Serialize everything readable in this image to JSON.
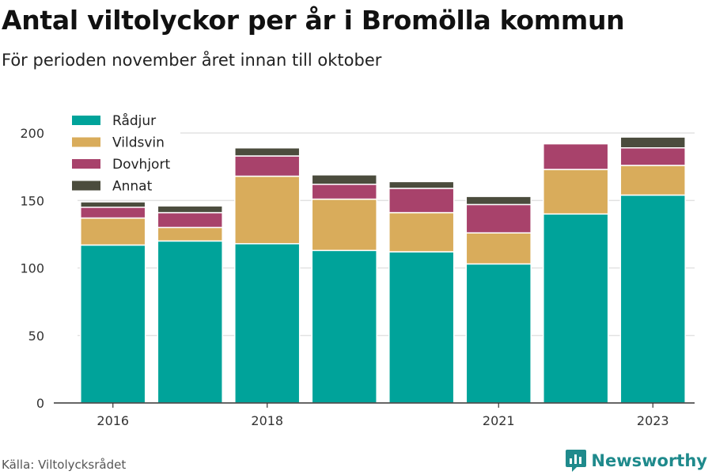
{
  "header": {
    "title": "Antal viltolyckor per år i Bromölla kommun",
    "subtitle": "För perioden november året innan till oktober"
  },
  "footer": {
    "source": "Källa: Viltolycksrådet",
    "brand": "Newsworthy",
    "brand_icon": "newsworthy-logo-icon"
  },
  "chart_data": {
    "type": "bar",
    "stacked": true,
    "categories": [
      "2016",
      "2017",
      "2018",
      "2019",
      "2020",
      "2021",
      "2022",
      "2023"
    ],
    "x_tick_labels": [
      "2016",
      "",
      "2018",
      "",
      "",
      "2021",
      "",
      "2023"
    ],
    "series": [
      {
        "name": "Rådjur",
        "color": "#00a39a",
        "values": [
          117,
          120,
          118,
          113,
          112,
          103,
          140,
          154
        ]
      },
      {
        "name": "Vildsvin",
        "color": "#d9ac5b",
        "values": [
          20,
          10,
          50,
          38,
          29,
          23,
          33,
          22
        ]
      },
      {
        "name": "Dovhjort",
        "color": "#a8426b",
        "values": [
          8,
          11,
          15,
          11,
          18,
          21,
          19,
          13
        ]
      },
      {
        "name": "Annat",
        "color": "#4b4c3d",
        "values": [
          4,
          5,
          6,
          7,
          5,
          6,
          0,
          8
        ]
      }
    ],
    "ylim": [
      0,
      210
    ],
    "yticks": [
      0,
      50,
      100,
      150,
      200
    ],
    "grid": true,
    "legend": "top-left"
  }
}
